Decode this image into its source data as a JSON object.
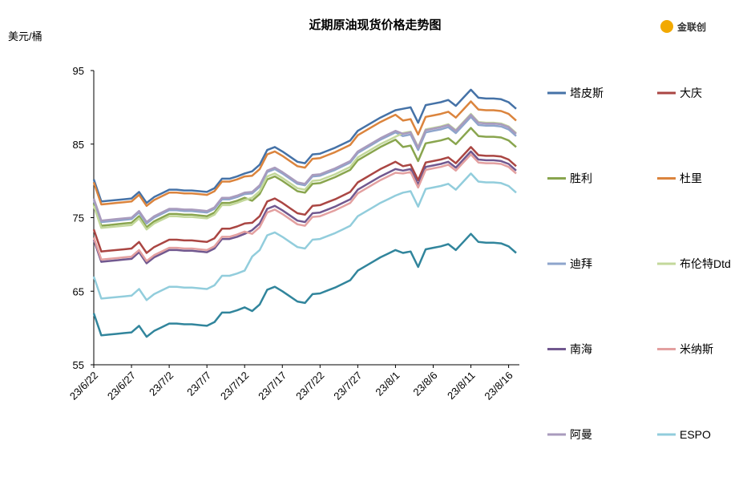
{
  "chart_data": {
    "type": "line",
    "title": "近期原油现货价格走势图",
    "y_label": "美元/桶",
    "logo": "金联创",
    "ylim": [
      55,
      95
    ],
    "yticks": [
      55,
      65,
      75,
      85,
      95
    ],
    "categories": [
      "23/6/22",
      null,
      null,
      null,
      null,
      "23/6/27",
      null,
      null,
      null,
      null,
      "23/7/2",
      null,
      null,
      null,
      null,
      "23/7/7",
      null,
      null,
      null,
      null,
      "23/7/12",
      null,
      null,
      null,
      null,
      "23/7/17",
      null,
      null,
      null,
      null,
      "23/7/22",
      null,
      null,
      null,
      null,
      "23/7/27",
      null,
      null,
      null,
      null,
      "23/8/1",
      null,
      null,
      null,
      null,
      "23/8/6",
      null,
      null,
      null,
      null,
      "23/8/11",
      null,
      null,
      null,
      null,
      "23/8/16",
      null
    ],
    "series": [
      {
        "name": "塔皮斯",
        "color": "#4572a7",
        "values": [
          80.2,
          77.2,
          77.3,
          77.4,
          77.5,
          77.6,
          78.5,
          77.0,
          77.8,
          78.3,
          78.8,
          78.8,
          78.7,
          78.7,
          78.6,
          78.5,
          79.0,
          80.3,
          80.3,
          80.6,
          81.0,
          81.3,
          82.2,
          84.2,
          84.6,
          84.0,
          83.3,
          82.6,
          82.4,
          83.6,
          83.7,
          84.1,
          84.5,
          85.0,
          85.5,
          86.8,
          87.4,
          88.0,
          88.6,
          89.1,
          89.6,
          89.8,
          90.0,
          87.9,
          90.3,
          90.5,
          90.7,
          91.0,
          90.2,
          91.3,
          92.4,
          91.3,
          91.2,
          91.2,
          91.1,
          90.7,
          89.8
        ]
      },
      {
        "name": "大庆",
        "color": "#aa4643",
        "values": [
          73.4,
          70.4,
          70.5,
          70.6,
          70.7,
          70.8,
          71.7,
          70.2,
          71.0,
          71.5,
          72.0,
          72.0,
          71.9,
          71.9,
          71.8,
          71.7,
          72.2,
          73.5,
          73.5,
          73.8,
          74.2,
          74.3,
          75.2,
          77.2,
          77.6,
          77.0,
          76.3,
          75.6,
          75.4,
          76.6,
          76.7,
          77.1,
          77.5,
          78.0,
          78.5,
          79.8,
          80.4,
          81.0,
          81.6,
          82.1,
          82.6,
          82.0,
          82.2,
          80.1,
          82.5,
          82.7,
          82.9,
          83.2,
          82.4,
          83.5,
          84.6,
          83.5,
          83.4,
          83.4,
          83.3,
          82.9,
          82.0
        ]
      },
      {
        "name": "胜利",
        "color": "#89a54e",
        "values": [
          76.9,
          73.9,
          74.0,
          74.1,
          74.2,
          74.3,
          75.2,
          73.7,
          74.5,
          75.0,
          75.5,
          75.5,
          75.4,
          75.4,
          75.3,
          75.2,
          75.7,
          77.0,
          77.0,
          77.3,
          77.7,
          77.3,
          78.2,
          80.2,
          80.6,
          80.0,
          79.3,
          78.6,
          78.4,
          79.6,
          79.7,
          80.1,
          80.5,
          81.0,
          81.5,
          82.8,
          83.4,
          84.0,
          84.6,
          85.1,
          85.6,
          84.6,
          84.8,
          82.7,
          85.1,
          85.3,
          85.5,
          85.8,
          85.0,
          86.1,
          87.2,
          86.1,
          86.0,
          86.0,
          85.9,
          85.5,
          84.6
        ]
      },
      {
        "name": "杜里",
        "color": "#db843d",
        "values": [
          79.8,
          76.8,
          76.9,
          77.0,
          77.1,
          77.2,
          78.1,
          76.6,
          77.4,
          77.9,
          78.4,
          78.4,
          78.3,
          78.3,
          78.2,
          78.1,
          78.6,
          79.9,
          79.9,
          80.2,
          80.6,
          80.7,
          81.6,
          83.6,
          84.0,
          83.4,
          82.7,
          82.0,
          81.8,
          83.0,
          83.1,
          83.5,
          83.9,
          84.4,
          84.9,
          86.2,
          86.8,
          87.4,
          88.0,
          88.5,
          89.0,
          88.2,
          88.4,
          86.3,
          88.7,
          88.9,
          89.1,
          89.4,
          88.6,
          89.7,
          90.8,
          89.7,
          89.6,
          89.6,
          89.5,
          89.1,
          88.2
        ]
      },
      {
        "name": "迪拜",
        "color": "#8ea5cc",
        "values": [
          77.4,
          74.4,
          74.5,
          74.6,
          74.7,
          74.8,
          75.7,
          74.2,
          75.0,
          75.5,
          76.0,
          76.0,
          75.9,
          75.9,
          75.8,
          75.7,
          76.2,
          77.5,
          77.5,
          77.8,
          78.2,
          78.3,
          79.2,
          81.2,
          81.6,
          81.0,
          80.3,
          79.6,
          79.4,
          80.6,
          80.7,
          81.1,
          81.5,
          82.0,
          82.5,
          83.8,
          84.4,
          85.0,
          85.6,
          86.1,
          86.6,
          86.1,
          86.3,
          84.2,
          86.6,
          86.8,
          87.0,
          87.3,
          86.5,
          87.6,
          88.7,
          87.6,
          87.5,
          87.5,
          87.4,
          87.0,
          86.1
        ]
      },
      {
        "name": "布伦特Dtd",
        "color": "#c3d89b",
        "values": [
          76.6,
          73.6,
          73.7,
          73.8,
          73.9,
          74.0,
          74.9,
          73.4,
          74.2,
          74.7,
          75.2,
          75.2,
          75.1,
          75.1,
          75.0,
          74.9,
          75.4,
          76.7,
          76.7,
          77.0,
          77.4,
          77.7,
          78.6,
          80.6,
          81.0,
          80.4,
          79.7,
          79.0,
          78.8,
          80.0,
          80.1,
          80.5,
          80.9,
          81.4,
          81.9,
          83.2,
          83.8,
          84.4,
          85.0,
          85.5,
          86.0,
          86.5,
          86.7,
          84.6,
          87.0,
          87.2,
          87.4,
          87.7,
          86.9,
          88.0,
          89.1,
          88.0,
          87.9,
          87.9,
          87.8,
          87.4,
          86.5
        ]
      },
      {
        "name": "南海",
        "color": "#71588f",
        "values": [
          72.0,
          69.0,
          69.1,
          69.2,
          69.3,
          69.4,
          70.3,
          68.8,
          69.6,
          70.1,
          70.6,
          70.6,
          70.5,
          70.5,
          70.4,
          70.3,
          70.8,
          72.1,
          72.1,
          72.4,
          72.8,
          73.3,
          74.2,
          76.2,
          76.6,
          76.0,
          75.3,
          74.6,
          74.4,
          75.6,
          75.7,
          76.1,
          76.5,
          77.0,
          77.5,
          78.8,
          79.4,
          80.0,
          80.6,
          81.1,
          81.6,
          81.4,
          81.6,
          79.5,
          81.9,
          82.1,
          82.3,
          82.6,
          81.8,
          82.9,
          84.0,
          82.9,
          82.8,
          82.8,
          82.7,
          82.3,
          81.4
        ]
      },
      {
        "name": "米纳斯",
        "color": "#e3a0a0",
        "values": [
          72.3,
          69.3,
          69.4,
          69.5,
          69.6,
          69.7,
          70.6,
          69.1,
          69.9,
          70.4,
          70.9,
          70.9,
          70.8,
          70.8,
          70.7,
          70.6,
          71.1,
          72.4,
          72.4,
          72.7,
          73.1,
          72.8,
          73.7,
          75.7,
          76.1,
          75.5,
          74.8,
          74.1,
          73.9,
          75.1,
          75.2,
          75.6,
          76.0,
          76.5,
          77.0,
          78.3,
          78.9,
          79.5,
          80.1,
          80.6,
          81.1,
          81.0,
          81.2,
          79.1,
          81.5,
          81.7,
          81.9,
          82.2,
          81.4,
          82.5,
          83.6,
          82.5,
          82.4,
          82.4,
          82.3,
          81.9,
          81.0
        ]
      },
      {
        "name": "阿曼",
        "color": "#a99bbd",
        "values": [
          77.6,
          74.6,
          74.7,
          74.8,
          74.9,
          75.0,
          75.9,
          74.4,
          75.2,
          75.7,
          76.2,
          76.2,
          76.1,
          76.1,
          76.0,
          75.9,
          76.4,
          77.7,
          77.7,
          78.0,
          78.4,
          78.5,
          79.4,
          81.4,
          81.8,
          81.2,
          80.5,
          79.8,
          79.6,
          80.8,
          80.9,
          81.3,
          81.7,
          82.2,
          82.7,
          84.0,
          84.6,
          85.2,
          85.8,
          86.3,
          86.8,
          86.4,
          86.6,
          84.5,
          86.9,
          87.1,
          87.3,
          87.6,
          86.8,
          87.9,
          89.0,
          87.9,
          87.8,
          87.8,
          87.7,
          87.3,
          86.4
        ]
      },
      {
        "name": "ESPO",
        "color": "#92cddc",
        "values": [
          67.0,
          64.0,
          64.1,
          64.2,
          64.3,
          64.4,
          65.3,
          63.8,
          64.6,
          65.1,
          65.6,
          65.6,
          65.5,
          65.5,
          65.4,
          65.3,
          65.8,
          67.1,
          67.1,
          67.4,
          67.8,
          69.7,
          70.6,
          72.6,
          73.0,
          72.4,
          71.7,
          71.0,
          70.8,
          72.0,
          72.1,
          72.5,
          72.9,
          73.4,
          73.9,
          75.2,
          75.8,
          76.4,
          77.0,
          77.5,
          78.0,
          78.4,
          78.6,
          76.5,
          78.9,
          79.1,
          79.3,
          79.6,
          78.8,
          79.9,
          81.0,
          79.9,
          79.8,
          79.8,
          79.7,
          79.3,
          78.4
        ]
      },
      {
        "color": "#31859c",
        "values": [
          62.0,
          59.0,
          59.1,
          59.2,
          59.3,
          59.4,
          60.3,
          58.8,
          59.6,
          60.1,
          60.6,
          60.6,
          60.5,
          60.5,
          60.4,
          60.3,
          60.8,
          62.1,
          62.1,
          62.4,
          62.8,
          62.3,
          63.2,
          65.2,
          65.6,
          65.0,
          64.3,
          63.6,
          63.4,
          64.6,
          64.7,
          65.1,
          65.5,
          66.0,
          66.5,
          67.8,
          68.4,
          69.0,
          69.6,
          70.1,
          70.6,
          70.2,
          70.4,
          68.3,
          70.7,
          70.9,
          71.1,
          71.4,
          70.6,
          71.7,
          72.8,
          71.7,
          71.6,
          71.6,
          71.5,
          71.1,
          70.2
        ]
      }
    ]
  }
}
